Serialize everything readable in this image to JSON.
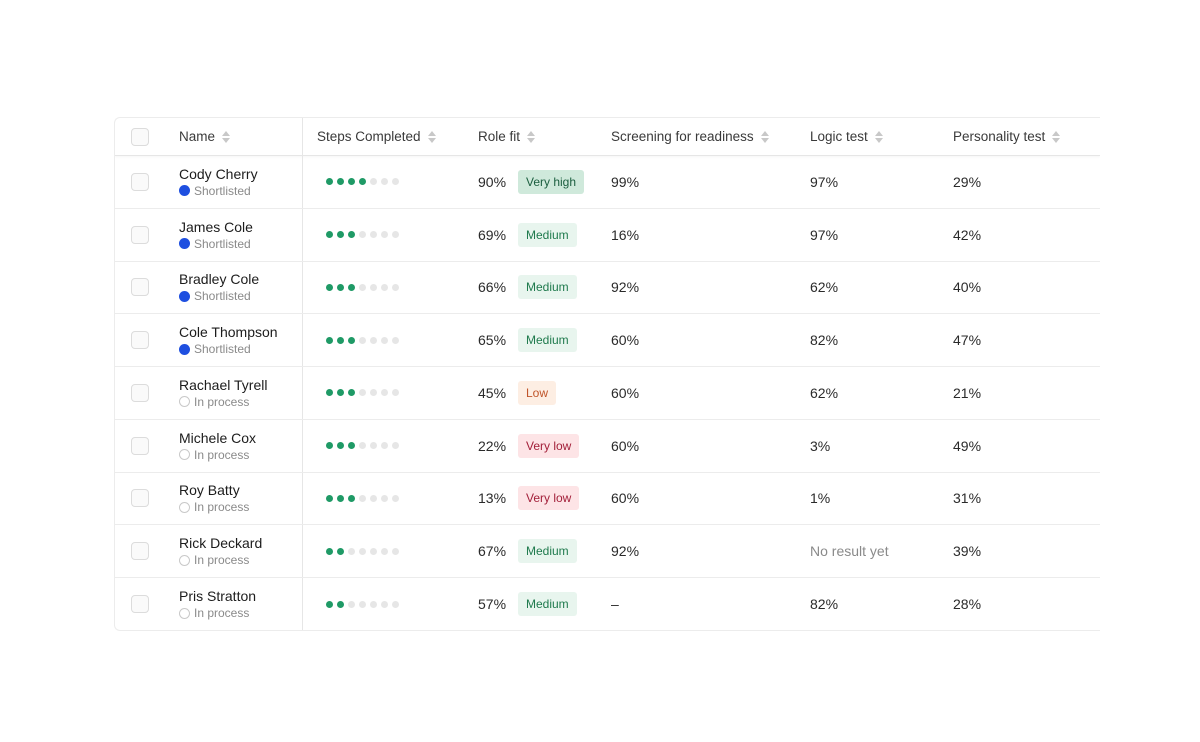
{
  "columns": {
    "name": "Name",
    "steps": "Steps Completed",
    "role_fit": "Role fit",
    "screening": "Screening for readiness",
    "logic": "Logic test",
    "personality": "Personality test"
  },
  "colors": {
    "shortlisted": "#1e4fe0",
    "step_on": "#1f9a66",
    "step_off": "#e6e6e6",
    "very_high_bg": "#cfe9db",
    "very_high_fg": "#1b5e3f",
    "medium_bg": "#e8f5ee",
    "medium_fg": "#1f7a4d",
    "low_bg": "#fdeee3",
    "low_fg": "#c0552a",
    "very_low_bg": "#fde4e6",
    "very_low_fg": "#a3203a"
  },
  "rows": [
    {
      "name": "Cody Cherry",
      "status": "Shortlisted",
      "steps_done": 4,
      "steps_total": 7,
      "role_pct": "90%",
      "role_badge": "Very high",
      "screening": "99%",
      "logic": "97%",
      "personality": "29%"
    },
    {
      "name": "James Cole",
      "status": "Shortlisted",
      "steps_done": 3,
      "steps_total": 7,
      "role_pct": "69%",
      "role_badge": "Medium",
      "screening": "16%",
      "logic": "97%",
      "personality": "42%"
    },
    {
      "name": "Bradley Cole",
      "status": "Shortlisted",
      "steps_done": 3,
      "steps_total": 7,
      "role_pct": "66%",
      "role_badge": "Medium",
      "screening": "92%",
      "logic": "62%",
      "personality": "40%"
    },
    {
      "name": "Cole Thompson",
      "status": "Shortlisted",
      "steps_done": 3,
      "steps_total": 7,
      "role_pct": "65%",
      "role_badge": "Medium",
      "screening": "60%",
      "logic": "82%",
      "personality": "47%"
    },
    {
      "name": "Rachael Tyrell",
      "status": "In process",
      "steps_done": 3,
      "steps_total": 7,
      "role_pct": "45%",
      "role_badge": "Low",
      "screening": "60%",
      "logic": "62%",
      "personality": "21%"
    },
    {
      "name": "Michele Cox",
      "status": "In process",
      "steps_done": 3,
      "steps_total": 7,
      "role_pct": "22%",
      "role_badge": "Very low",
      "screening": "60%",
      "logic": "3%",
      "personality": "49%"
    },
    {
      "name": "Roy Batty",
      "status": "In process",
      "steps_done": 3,
      "steps_total": 7,
      "role_pct": "13%",
      "role_badge": "Very low",
      "screening": "60%",
      "logic": "1%",
      "personality": "31%"
    },
    {
      "name": "Rick Deckard",
      "status": "In process",
      "steps_done": 2,
      "steps_total": 7,
      "role_pct": "67%",
      "role_badge": "Medium",
      "screening": "92%",
      "logic": "No result yet",
      "personality": "39%"
    },
    {
      "name": "Pris Stratton",
      "status": "In process",
      "steps_done": 2,
      "steps_total": 7,
      "role_pct": "57%",
      "role_badge": "Medium",
      "screening": "–",
      "logic": "82%",
      "personality": "28%"
    }
  ]
}
